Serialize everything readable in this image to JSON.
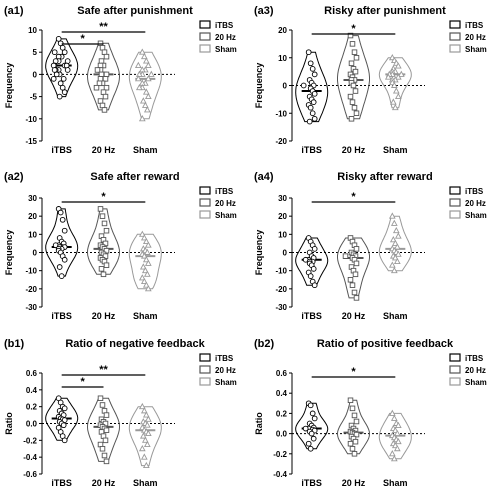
{
  "figure": {
    "panels": [
      {
        "id": "a1",
        "tag": "(a1)",
        "title": "Safe after punishment",
        "ylabel": "Frequency",
        "sig": [
          {
            "from": 0,
            "to": 1,
            "label": "*"
          },
          {
            "from": 0,
            "to": 2,
            "label": "**"
          }
        ]
      },
      {
        "id": "a3",
        "tag": "(a3)",
        "title": "Risky after punishment",
        "ylabel": "Frequency",
        "sig": [
          {
            "from": 0,
            "to": 2,
            "label": "*"
          }
        ]
      },
      {
        "id": "a2",
        "tag": "(a2)",
        "title": "Safe after reward",
        "ylabel": "Frequency",
        "sig": [
          {
            "from": 0,
            "to": 2,
            "label": "*"
          }
        ]
      },
      {
        "id": "a4",
        "tag": "(a4)",
        "title": "Risky after reward",
        "ylabel": "Frequency",
        "sig": [
          {
            "from": 0,
            "to": 2,
            "label": "*"
          }
        ]
      },
      {
        "id": "b1",
        "tag": "(b1)",
        "title": "Ratio of negative feedback",
        "ylabel": "Ratio",
        "sig": [
          {
            "from": 0,
            "to": 1,
            "label": "*"
          },
          {
            "from": 0,
            "to": 2,
            "label": "**"
          }
        ]
      },
      {
        "id": "b2",
        "tag": "(b2)",
        "title": "Ratio of positive feedback",
        "ylabel": "Ratio",
        "sig": [
          {
            "from": 0,
            "to": 2,
            "label": "*"
          }
        ]
      }
    ],
    "legend": [
      "iTBS",
      "20 Hz",
      "Sham"
    ],
    "colors": {
      "iTBS": "#000000",
      "20 Hz": "#555555",
      "Sham": "#999999"
    }
  },
  "chart_data": [
    {
      "type": "violin",
      "title": "Safe after punishment",
      "xlabel": "",
      "ylabel": "Frequency",
      "categories": [
        "iTBS",
        "20 Hz",
        "Sham"
      ],
      "ylim": [
        -15,
        10
      ],
      "yticks": [
        -15,
        -10,
        -5,
        0,
        5,
        10
      ],
      "legend_position": "top-right",
      "series": [
        {
          "name": "iTBS",
          "values": [
            8,
            7,
            6,
            5,
            5,
            4,
            4,
            3,
            3,
            3,
            2,
            2,
            2,
            2,
            1,
            1,
            1,
            1,
            0,
            0,
            -1,
            -1,
            -2,
            -3,
            -4,
            -5
          ]
        },
        {
          "name": "20 Hz",
          "values": [
            7,
            6,
            5,
            4,
            3,
            2,
            2,
            1,
            1,
            0,
            0,
            0,
            -1,
            -1,
            -1,
            -2,
            -2,
            -3,
            -3,
            -4,
            -5,
            -6,
            -7,
            -8
          ]
        },
        {
          "name": "Sham",
          "values": [
            5,
            4,
            3,
            2,
            2,
            1,
            1,
            0,
            0,
            0,
            -1,
            -1,
            -2,
            -2,
            -3,
            -3,
            -4,
            -5,
            -6,
            -7,
            -8,
            -10
          ]
        }
      ]
    },
    {
      "type": "violin",
      "title": "Risky after punishment",
      "xlabel": "",
      "ylabel": "Frequency",
      "categories": [
        "iTBS",
        "20 Hz",
        "Sham"
      ],
      "ylim": [
        -20,
        20
      ],
      "yticks": [
        -20,
        -10,
        0,
        10,
        20
      ],
      "legend_position": "top-right",
      "series": [
        {
          "name": "iTBS",
          "values": [
            12,
            8,
            6,
            4,
            2,
            1,
            0,
            0,
            -1,
            -2,
            -3,
            -4,
            -5,
            -6,
            -7,
            -8,
            -10,
            -12,
            -13
          ]
        },
        {
          "name": "20 Hz",
          "values": [
            18,
            15,
            12,
            10,
            8,
            6,
            5,
            4,
            3,
            2,
            2,
            1,
            0,
            -2,
            -4,
            -6,
            -8,
            -10,
            -12
          ]
        },
        {
          "name": "Sham",
          "values": [
            10,
            9,
            8,
            7,
            6,
            5,
            5,
            4,
            4,
            4,
            3,
            3,
            2,
            2,
            1,
            0,
            -2,
            -4,
            -6,
            -8
          ]
        }
      ]
    },
    {
      "type": "violin",
      "title": "Safe after reward",
      "xlabel": "",
      "ylabel": "Frequency",
      "categories": [
        "iTBS",
        "20 Hz",
        "Sham"
      ],
      "ylim": [
        -30,
        30
      ],
      "yticks": [
        -30,
        -20,
        -10,
        0,
        10,
        20,
        30
      ],
      "legend_position": "top-right",
      "series": [
        {
          "name": "iTBS",
          "values": [
            24,
            22,
            18,
            12,
            8,
            6,
            5,
            4,
            4,
            3,
            3,
            3,
            2,
            2,
            1,
            0,
            -2,
            -4,
            -8,
            -13
          ]
        },
        {
          "name": "20 Hz",
          "values": [
            24,
            20,
            16,
            12,
            9,
            7,
            5,
            4,
            3,
            2,
            1,
            0,
            -1,
            -2,
            -3,
            -4,
            -5,
            -7,
            -9,
            -12
          ]
        },
        {
          "name": "Sham",
          "values": [
            10,
            8,
            6,
            4,
            2,
            1,
            0,
            -1,
            -2,
            -4,
            -6,
            -8,
            -10,
            -12,
            -14,
            -16,
            -18,
            -20
          ]
        }
      ]
    },
    {
      "type": "violin",
      "title": "Risky after reward",
      "xlabel": "",
      "ylabel": "Frequency",
      "categories": [
        "iTBS",
        "20 Hz",
        "Sham"
      ],
      "ylim": [
        -30,
        30
      ],
      "yticks": [
        -30,
        -20,
        -10,
        0,
        10,
        20,
        30
      ],
      "legend_position": "top-right",
      "series": [
        {
          "name": "iTBS",
          "values": [
            8,
            6,
            4,
            2,
            0,
            -2,
            -3,
            -4,
            -4,
            -5,
            -5,
            -6,
            -7,
            -9,
            -11,
            -13,
            -16,
            -18
          ]
        },
        {
          "name": "20 Hz",
          "values": [
            8,
            6,
            4,
            2,
            0,
            -1,
            -2,
            -2,
            -3,
            -4,
            -6,
            -8,
            -10,
            -12,
            -15,
            -18,
            -22,
            -25
          ]
        },
        {
          "name": "Sham",
          "values": [
            20,
            16,
            12,
            9,
            7,
            5,
            3,
            2,
            1,
            0,
            -1,
            -2,
            -3,
            -5,
            -7,
            -10
          ]
        }
      ]
    },
    {
      "type": "violin",
      "title": "Ratio of negative feedback",
      "xlabel": "",
      "ylabel": "Ratio",
      "categories": [
        "iTBS",
        "20 Hz",
        "Sham"
      ],
      "ylim": [
        -0.6,
        0.6
      ],
      "yticks": [
        -0.6,
        -0.4,
        -0.2,
        0.0,
        0.2,
        0.4,
        0.6
      ],
      "legend_position": "top-right",
      "series": [
        {
          "name": "iTBS",
          "values": [
            0.3,
            0.25,
            0.2,
            0.18,
            0.15,
            0.12,
            0.1,
            0.08,
            0.06,
            0.05,
            0.04,
            0.02,
            0.0,
            -0.02,
            -0.05,
            -0.1,
            -0.15,
            -0.2
          ]
        },
        {
          "name": "20 Hz",
          "values": [
            0.3,
            0.22,
            0.15,
            0.1,
            0.05,
            0.02,
            0.0,
            -0.02,
            -0.04,
            -0.06,
            -0.08,
            -0.1,
            -0.15,
            -0.2,
            -0.25,
            -0.3,
            -0.38,
            -0.45
          ]
        },
        {
          "name": "Sham",
          "values": [
            0.2,
            0.15,
            0.1,
            0.05,
            0.02,
            0.0,
            -0.02,
            -0.05,
            -0.08,
            -0.1,
            -0.12,
            -0.15,
            -0.2,
            -0.25,
            -0.3,
            -0.4,
            -0.5
          ]
        }
      ]
    },
    {
      "type": "violin",
      "title": "Ratio of positive feedback",
      "xlabel": "",
      "ylabel": "Ratio",
      "categories": [
        "iTBS",
        "20 Hz",
        "Sham"
      ],
      "ylim": [
        -0.4,
        0.6
      ],
      "yticks": [
        -0.4,
        -0.2,
        0.0,
        0.2,
        0.4,
        0.6
      ],
      "legend_position": "top-right",
      "series": [
        {
          "name": "iTBS",
          "values": [
            0.3,
            0.28,
            0.2,
            0.15,
            0.1,
            0.08,
            0.06,
            0.05,
            0.05,
            0.04,
            0.03,
            0.02,
            0.0,
            -0.05,
            -0.1,
            -0.15
          ]
        },
        {
          "name": "20 Hz",
          "values": [
            0.33,
            0.25,
            0.18,
            0.12,
            0.08,
            0.05,
            0.03,
            0.02,
            0.01,
            0.0,
            -0.01,
            -0.03,
            -0.05,
            -0.08,
            -0.1,
            -0.15,
            -0.2
          ]
        },
        {
          "name": "Sham",
          "values": [
            0.2,
            0.15,
            0.1,
            0.08,
            0.05,
            0.03,
            0.0,
            -0.02,
            -0.04,
            -0.06,
            -0.08,
            -0.1,
            -0.12,
            -0.15,
            -0.2,
            -0.25
          ]
        }
      ]
    }
  ]
}
